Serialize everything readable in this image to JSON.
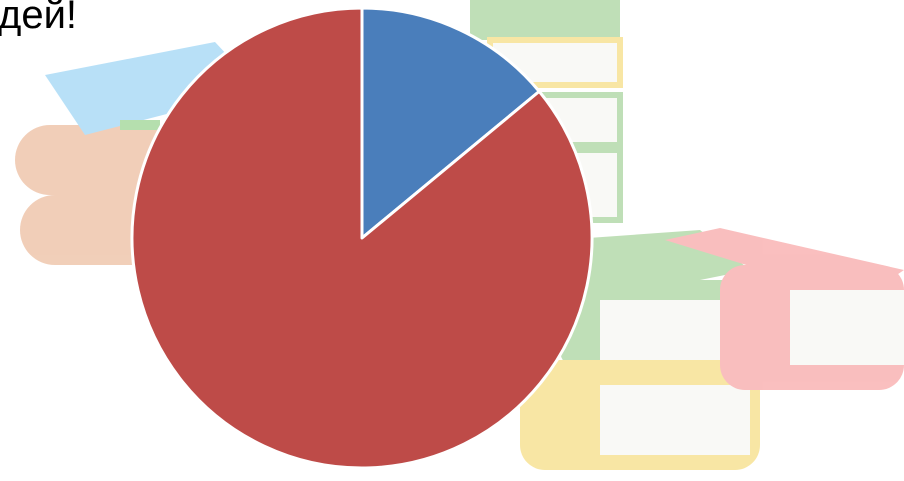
{
  "chart_data": {
    "type": "pie",
    "title": "дей!",
    "categories": [
      null,
      null
    ],
    "values": [
      14,
      86
    ],
    "colors": [
      "#4a7ebb",
      "#be4b48"
    ]
  }
}
